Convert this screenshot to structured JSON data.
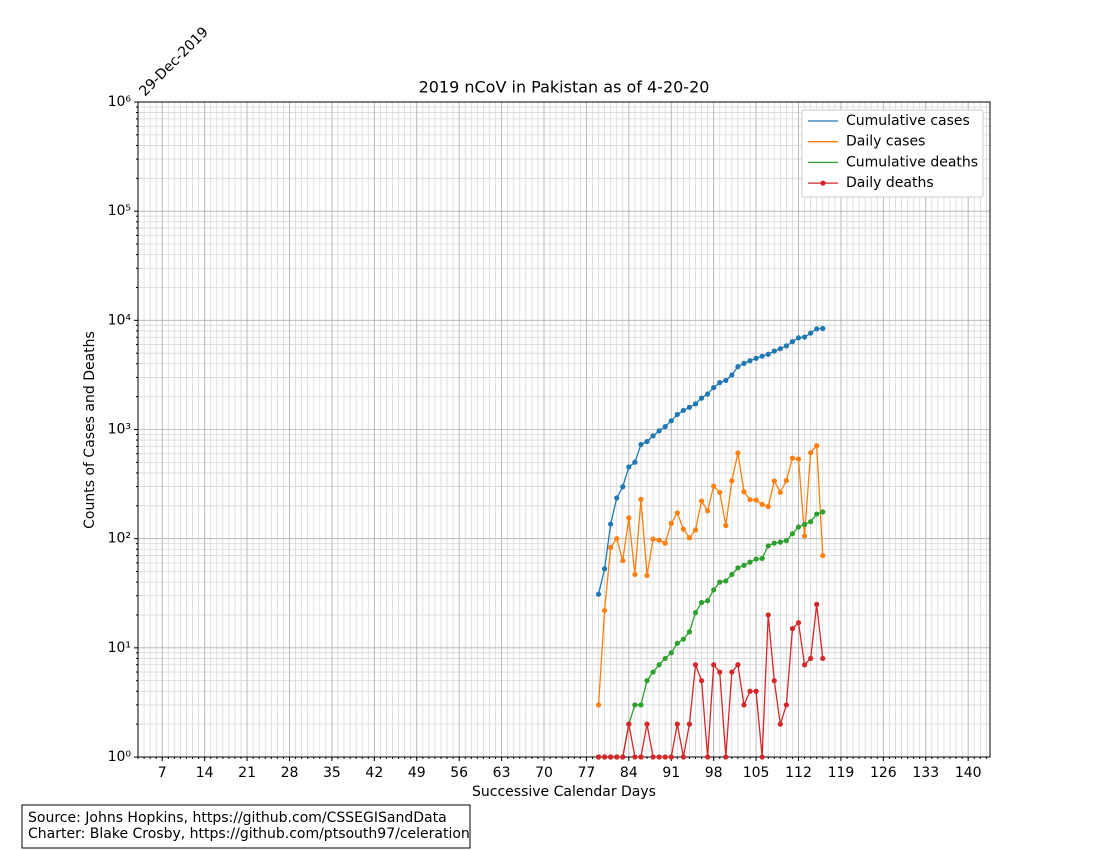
{
  "chart_data": {
    "type": "line",
    "title": "2019 nCoV in Pakistan as of 4-20-20",
    "annotation": "29-Dec-2019",
    "x_label": "Successive Calendar Days",
    "y_label": "Counts of Cases and Deaths",
    "source": [
      "Source: Johns Hopkins, https://github.com/CSSEGISandData",
      "Charter: Blake Crosby, https://github.com/ptsouth97/celeration"
    ],
    "yscale": "log",
    "grid": true,
    "minor_grid": true,
    "legend": "upper right",
    "xlim": [
      3,
      143.6
    ],
    "xticks": [
      7,
      14,
      21,
      28,
      35,
      42,
      49,
      56,
      63,
      70,
      77,
      84,
      91,
      98,
      105,
      112,
      119,
      126,
      133,
      140
    ],
    "ylim": [
      1,
      1000000
    ],
    "yticks": [
      {
        "value": 1,
        "label": "10⁰"
      },
      {
        "value": 10,
        "label": "10¹"
      },
      {
        "value": 100,
        "label": "10²"
      },
      {
        "value": 1000,
        "label": "10³"
      },
      {
        "value": 10000,
        "label": "10⁴"
      },
      {
        "value": 100000,
        "label": "10⁵"
      },
      {
        "value": 1000000,
        "label": "10⁶"
      }
    ],
    "x": [
      79,
      80,
      81,
      82,
      83,
      84,
      85,
      86,
      87,
      88,
      89,
      90,
      91,
      92,
      93,
      94,
      95,
      96,
      97,
      98,
      99,
      100,
      101,
      102,
      103,
      104,
      105,
      106,
      107,
      108,
      109,
      110,
      111,
      112,
      113,
      114,
      115,
      116
    ],
    "series": [
      {
        "name": "Cumulative cases",
        "color": "#1f77b4",
        "values": [
          31,
          53,
          136,
          236,
          299,
          454,
          501,
          730,
          776,
          875,
          972,
          1063,
          1201,
          1373,
          1495,
          1597,
          1717,
          1938,
          2118,
          2421,
          2686,
          2818,
          3157,
          3766,
          4035,
          4263,
          4489,
          4695,
          4892,
          5230,
          5496,
          5837,
          6383,
          6919,
          7025,
          7638,
          8348,
          8418
        ]
      },
      {
        "name": "Daily cases",
        "color": "#ff7f0e",
        "values": [
          3,
          22,
          83,
          100,
          63,
          155,
          47,
          229,
          46,
          99,
          97,
          91,
          138,
          172,
          122,
          102,
          120,
          221,
          180,
          303,
          265,
          132,
          339,
          609,
          269,
          228,
          226,
          206,
          197,
          338,
          266,
          341,
          546,
          536,
          106,
          613,
          710,
          70
        ]
      },
      {
        "name": "Cumulative deaths",
        "color": "#2ca02c",
        "values": [
          0,
          0,
          0,
          0,
          0,
          2,
          3,
          3,
          5,
          6,
          7,
          8,
          9,
          11,
          12,
          14,
          21,
          26,
          27,
          34,
          40,
          41,
          47,
          54,
          57,
          61,
          65,
          66,
          86,
          91,
          93,
          96,
          111,
          128,
          135,
          143,
          168,
          176
        ]
      },
      {
        "name": "Daily deaths",
        "color": "#d62728",
        "values": [
          0,
          0,
          0,
          0,
          0,
          2,
          1,
          0,
          2,
          1,
          1,
          1,
          1,
          2,
          1,
          2,
          7,
          5,
          1,
          7,
          6,
          1,
          6,
          7,
          3,
          4,
          4,
          1,
          20,
          5,
          2,
          3,
          15,
          17,
          7,
          8,
          25,
          8
        ]
      }
    ]
  }
}
